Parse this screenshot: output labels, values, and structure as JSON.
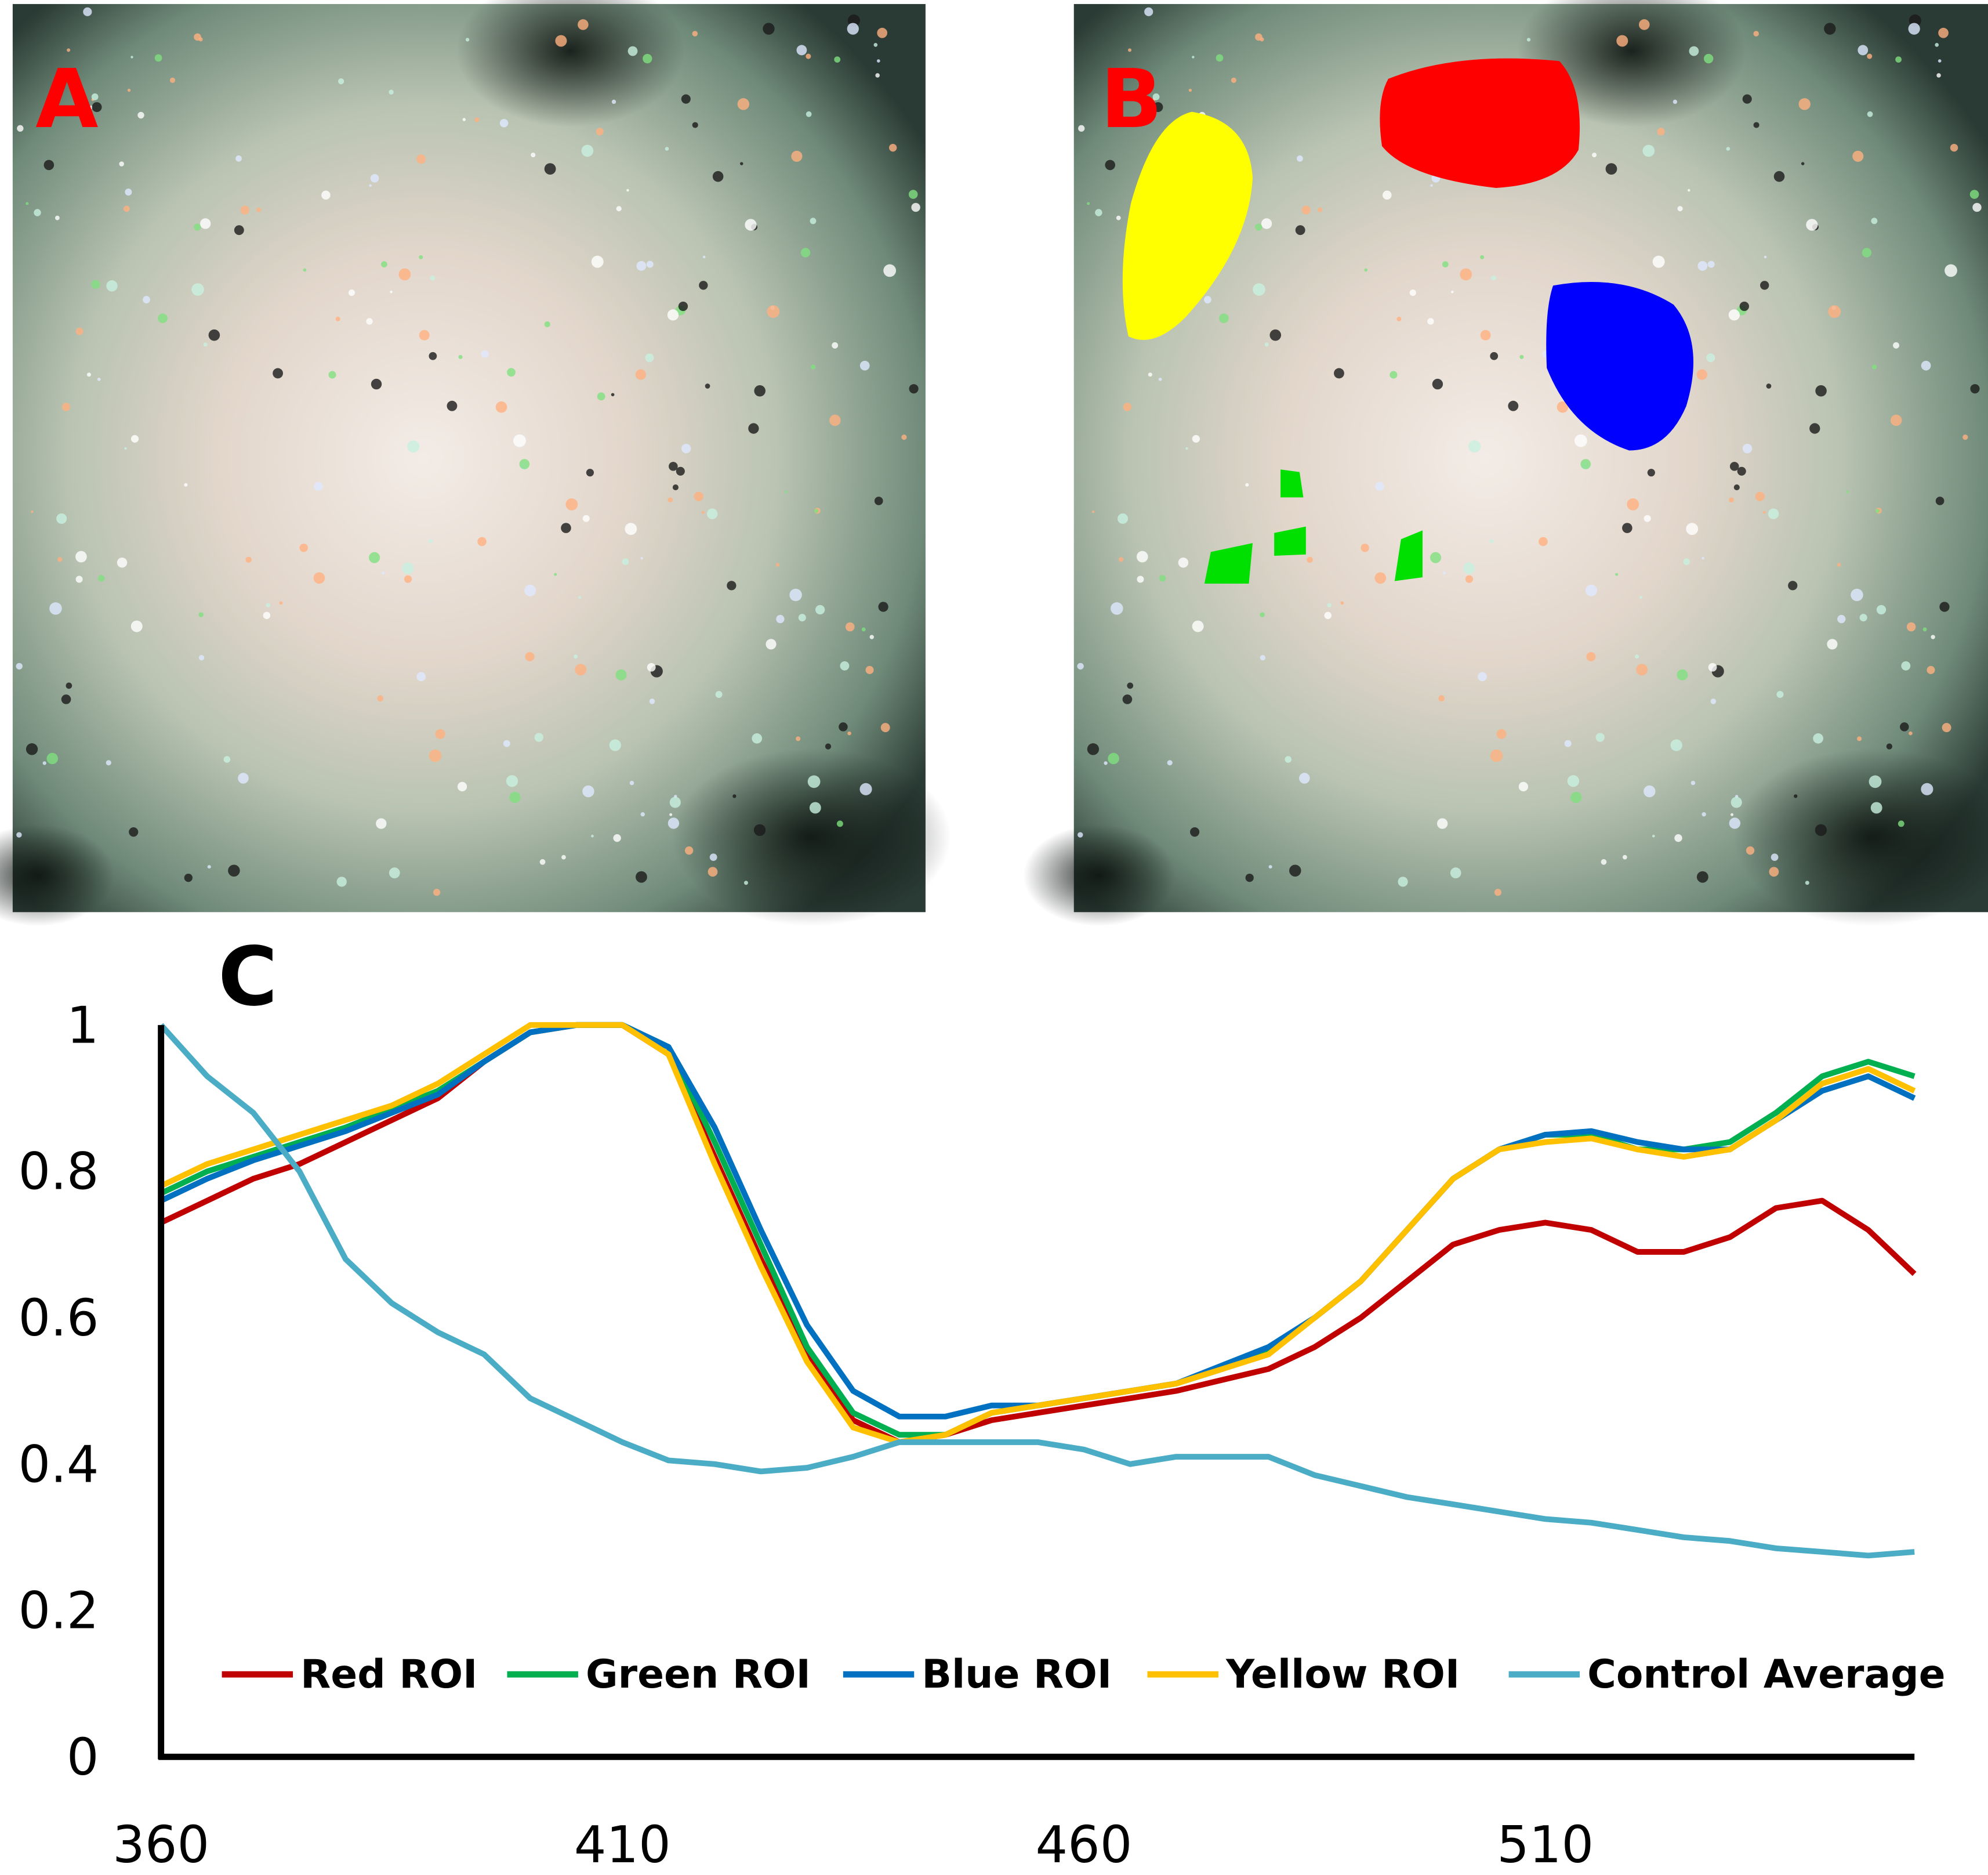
{
  "figure": {
    "panel_labels": [
      "A",
      "B",
      "C"
    ]
  },
  "chart_data": {
    "type": "line",
    "x": [
      360,
      365,
      370,
      375,
      380,
      385,
      390,
      395,
      400,
      405,
      410,
      415,
      420,
      425,
      430,
      435,
      440,
      445,
      450,
      455,
      460,
      465,
      470,
      475,
      480,
      485,
      490,
      495,
      500,
      505,
      510,
      515,
      520,
      525,
      530,
      535,
      540,
      545,
      550
    ],
    "series": [
      {
        "name": "Red ROI",
        "color": "#c00000",
        "values": [
          0.73,
          0.76,
          0.79,
          0.81,
          0.84,
          0.87,
          0.9,
          0.95,
          0.99,
          1.0,
          1.0,
          0.96,
          0.82,
          0.68,
          0.55,
          0.46,
          0.43,
          0.44,
          0.46,
          0.47,
          0.48,
          0.49,
          0.5,
          0.515,
          0.53,
          0.56,
          0.6,
          0.65,
          0.7,
          0.72,
          0.73,
          0.72,
          0.69,
          0.69,
          0.71,
          0.75,
          0.76,
          0.72,
          0.66
        ]
      },
      {
        "name": "Green ROI",
        "color": "#00b050",
        "values": [
          0.77,
          0.8,
          0.82,
          0.84,
          0.86,
          0.885,
          0.91,
          0.95,
          0.99,
          1.0,
          1.0,
          0.97,
          0.84,
          0.7,
          0.56,
          0.47,
          0.44,
          0.44,
          0.47,
          0.48,
          0.49,
          0.5,
          0.51,
          0.53,
          0.555,
          0.6,
          0.65,
          0.72,
          0.79,
          0.83,
          0.85,
          0.85,
          0.83,
          0.83,
          0.84,
          0.88,
          0.93,
          0.95,
          0.93
        ]
      },
      {
        "name": "Blue ROI",
        "color": "#0070c0",
        "values": [
          0.76,
          0.79,
          0.815,
          0.835,
          0.855,
          0.88,
          0.905,
          0.95,
          0.99,
          1.0,
          1.0,
          0.97,
          0.86,
          0.72,
          0.59,
          0.5,
          0.465,
          0.465,
          0.48,
          0.48,
          0.49,
          0.5,
          0.51,
          0.535,
          0.56,
          0.6,
          0.65,
          0.72,
          0.79,
          0.83,
          0.85,
          0.855,
          0.84,
          0.83,
          0.83,
          0.87,
          0.91,
          0.93,
          0.9
        ]
      },
      {
        "name": "Yellow ROI",
        "color": "#ffc000",
        "values": [
          0.78,
          0.81,
          0.83,
          0.85,
          0.87,
          0.89,
          0.92,
          0.96,
          1.0,
          1.0,
          1.0,
          0.96,
          0.81,
          0.67,
          0.54,
          0.45,
          0.43,
          0.44,
          0.47,
          0.48,
          0.49,
          0.5,
          0.51,
          0.53,
          0.55,
          0.6,
          0.65,
          0.72,
          0.79,
          0.83,
          0.84,
          0.845,
          0.83,
          0.82,
          0.83,
          0.87,
          0.92,
          0.94,
          0.91
        ]
      },
      {
        "name": "Control Average",
        "color": "#4bacc6",
        "values": [
          1.0,
          0.93,
          0.88,
          0.8,
          0.68,
          0.62,
          0.58,
          0.55,
          0.49,
          0.46,
          0.43,
          0.405,
          0.4,
          0.39,
          0.395,
          0.41,
          0.43,
          0.43,
          0.43,
          0.43,
          0.42,
          0.4,
          0.41,
          0.41,
          0.41,
          0.385,
          0.37,
          0.355,
          0.345,
          0.335,
          0.325,
          0.32,
          0.31,
          0.3,
          0.295,
          0.285,
          0.28,
          0.275,
          0.28
        ]
      }
    ],
    "xlim": [
      360,
      550
    ],
    "xticks": [
      360,
      410,
      460,
      510
    ],
    "ylim": [
      0,
      1
    ],
    "yticks": [
      0,
      0.2,
      0.4,
      0.6,
      0.8,
      1
    ],
    "grid": false,
    "legend": "bottom"
  }
}
